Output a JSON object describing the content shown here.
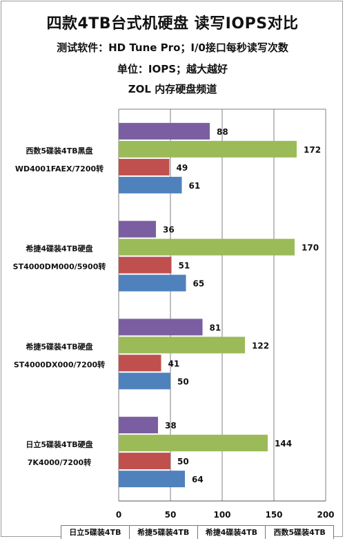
{
  "titles": {
    "main": "四款4TB台式机硬盘 读写IOPS对比",
    "line2": "测试软件：HD Tune Pro；I/0接口每秒读写次数",
    "line3": "单位：IOPS；越大越好",
    "line4": "ZOL 内存硬盘频道"
  },
  "legend": [
    "日立5碟装4TB",
    "希捷5碟装4TB",
    "希捷4碟装4TB",
    "西数5碟装4TB"
  ],
  "chart_data": {
    "type": "bar",
    "orientation": "horizontal",
    "xlim": [
      0,
      200
    ],
    "x_ticks": [
      "0",
      "50",
      "100",
      "150",
      "200"
    ],
    "grid": true,
    "legend_position": "bottom",
    "categories": [
      {
        "line1": "西数5碟装4TB黑盘",
        "line2": "WD4001FAEX/7200转"
      },
      {
        "line1": "希捷4碟装4TB硬盘",
        "line2": "ST4000DM000/5900转"
      },
      {
        "line1": "希捷5碟装4TB硬盘",
        "line2": "ST4000DX000/7200转"
      },
      {
        "line1": "日立5碟装4TB硬盘",
        "line2": "7K4000/7200转"
      }
    ],
    "bars": [
      {
        "color": "#7b5ea1",
        "values": [
          88,
          36,
          81,
          38
        ]
      },
      {
        "color": "#9bbb59",
        "values": [
          172,
          170,
          122,
          144
        ]
      },
      {
        "color": "#c0504d",
        "values": [
          49,
          51,
          41,
          50
        ]
      },
      {
        "color": "#4f81bd",
        "values": [
          61,
          65,
          50,
          64
        ]
      }
    ]
  }
}
